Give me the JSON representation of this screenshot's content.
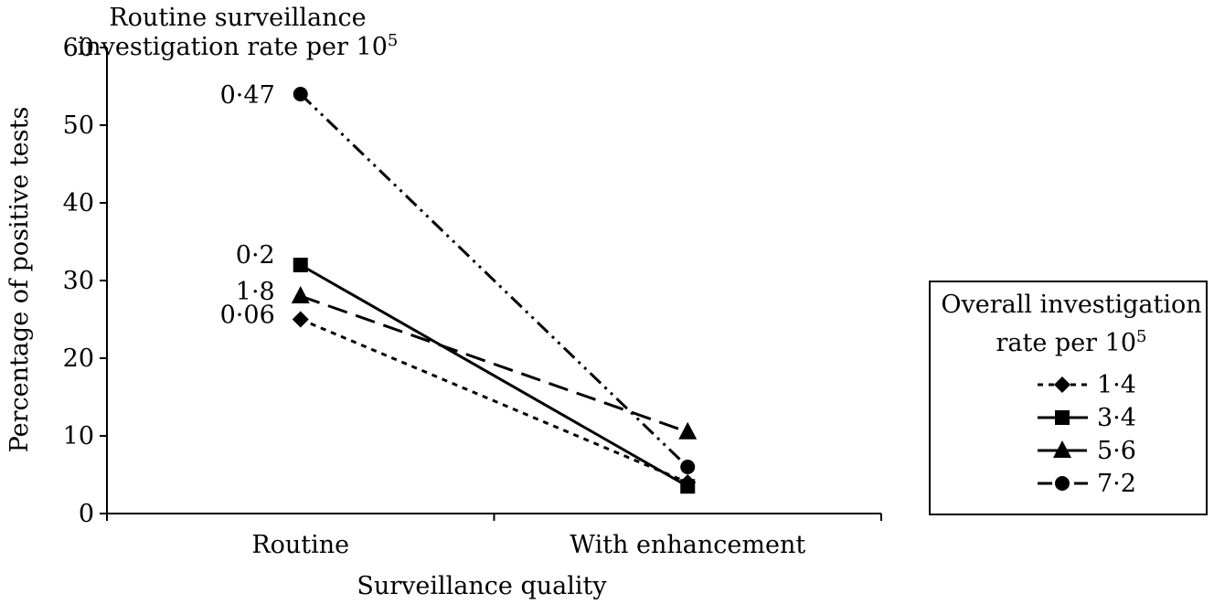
{
  "chart_data": {
    "type": "line",
    "categories": [
      "Routine",
      "With enhancement"
    ],
    "xlabel": "Surveillance quality",
    "ylabel": "Percentage of positive tests",
    "ylim": [
      0,
      60
    ],
    "yticks": [
      0,
      10,
      20,
      30,
      40,
      50,
      60
    ],
    "grid": false,
    "annotation_title": {
      "line1": "Routine surveillance",
      "line2": "investigation rate per 10",
      "superscript": "5"
    },
    "legend": {
      "placement": "right",
      "title_line1": "Overall investigation",
      "title_line2": "rate per 10",
      "title_superscript": "5"
    },
    "series": [
      {
        "name": "1·4",
        "values": [
          25,
          4
        ],
        "point_label": "0·06",
        "marker": "diamond",
        "dash": "dotted"
      },
      {
        "name": "3·4",
        "values": [
          32,
          3.5
        ],
        "point_label": "0·2",
        "marker": "square",
        "dash": "solid"
      },
      {
        "name": "5·6",
        "values": [
          28,
          10.5
        ],
        "point_label": "1·8",
        "marker": "triangle",
        "dash": "dashed"
      },
      {
        "name": "7·2",
        "values": [
          54,
          6
        ],
        "point_label": "0·47",
        "marker": "circle",
        "dash": "dashdotdot"
      }
    ]
  }
}
